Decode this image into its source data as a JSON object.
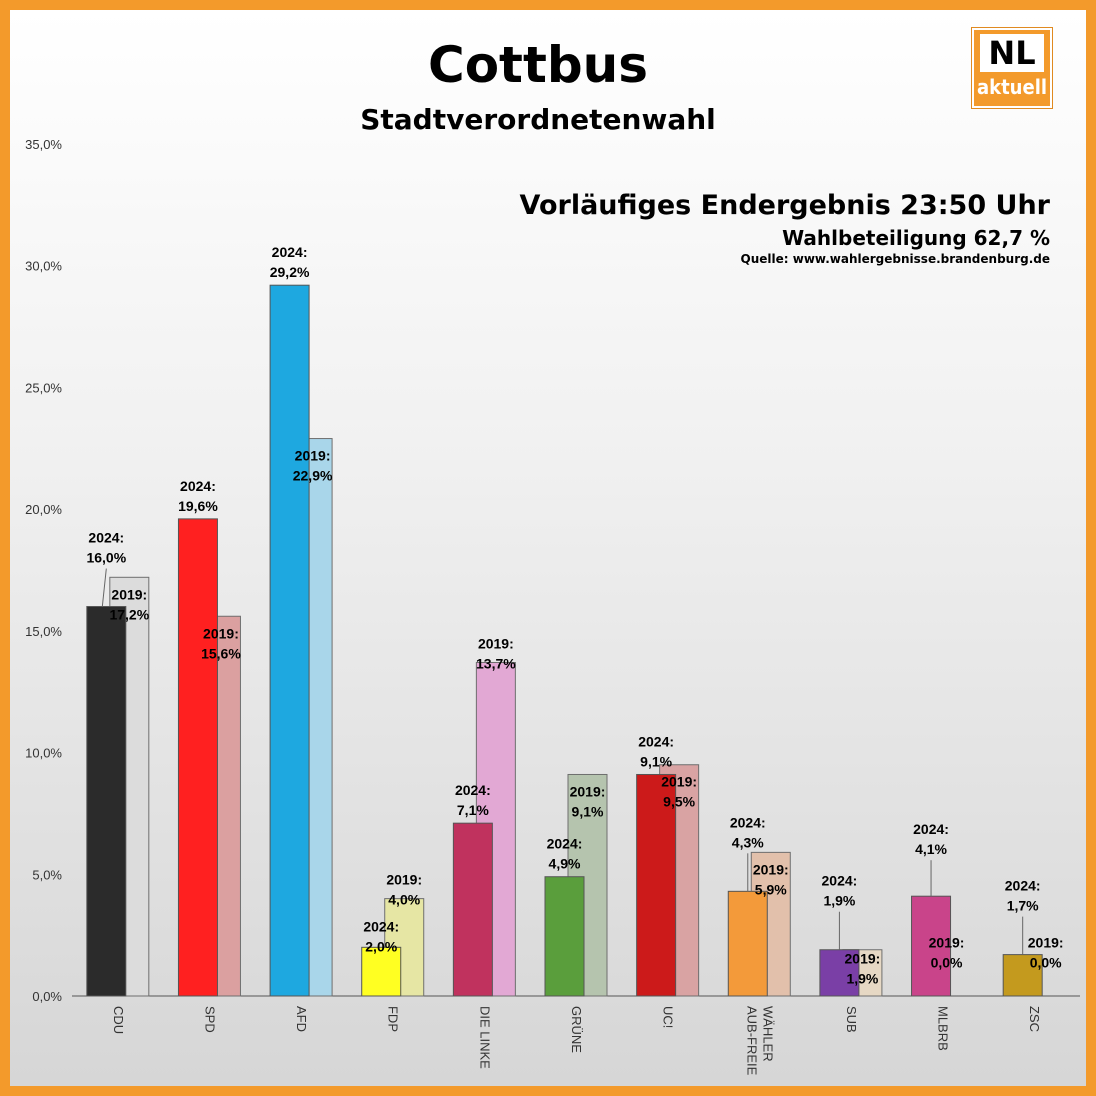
{
  "header": {
    "title": "Cottbus",
    "subtitle": "Stadtverordnetenwahl",
    "result_status": "Vorläufiges Endergebnis 23:50 Uhr",
    "turnout": "Wahlbeteiligung 62,7 %",
    "source": "Quelle: www.wahlergebnisse.brandenburg.de"
  },
  "logo": {
    "line1": "NL",
    "line2": "aktuell"
  },
  "colors": {
    "frame": "#f39a2b",
    "logo_bg": "#f39a2b"
  },
  "chart_data": {
    "type": "bar",
    "ylim": [
      0,
      35
    ],
    "yticks": [
      "0,0%",
      "5,0%",
      "10,0%",
      "15,0%",
      "20,0%",
      "25,0%",
      "30,0%",
      "35,0%"
    ],
    "grid": false,
    "categories": [
      "CDU",
      "SPD",
      "AFD",
      "FDP",
      "DIE LINKE",
      "GRÜNE",
      "UC!",
      "AUB-FREIE WÄHLER",
      "SUB",
      "MLBRB",
      "ZSC"
    ],
    "category_labels": [
      [
        "CDU"
      ],
      [
        "SPD"
      ],
      [
        "AFD"
      ],
      [
        "FDP"
      ],
      [
        "DIE LINKE"
      ],
      [
        "GRÜNE"
      ],
      [
        "UC!"
      ],
      [
        "AUB-FREIE",
        "WÄHLER"
      ],
      [
        "SUB"
      ],
      [
        "MLBRB"
      ],
      [
        "ZSC"
      ]
    ],
    "series": [
      {
        "label_prefix": "2024:",
        "values": [
          16.0,
          19.6,
          29.2,
          2.0,
          7.1,
          4.9,
          9.1,
          4.3,
          1.9,
          4.1,
          1.7
        ],
        "labels": [
          "16,0%",
          "19,6%",
          "29,2%",
          "2,0%",
          "7,1%",
          "4,9%",
          "9,1%",
          "4,3%",
          "1,9%",
          "4,1%",
          "1,7%"
        ],
        "colors": [
          "#2b2b2b",
          "#ff2020",
          "#1ea8e0",
          "#ffff22",
          "#c0325e",
          "#5a9e3c",
          "#cc1a1a",
          "#f39a3a",
          "#7a3fa6",
          "#c9448a",
          "#c49a1e"
        ]
      },
      {
        "label_prefix": "2019:",
        "values": [
          17.2,
          15.6,
          22.9,
          4.0,
          13.7,
          9.1,
          9.5,
          5.9,
          1.9,
          0.0,
          0.0
        ],
        "labels": [
          "17,2%",
          "15,6%",
          "22,9%",
          "4,0%",
          "13,7%",
          "9,1%",
          "9,5%",
          "5,9%",
          "1,9%",
          "0,0%",
          "0,0%"
        ],
        "colors": [
          "#dcdcdc",
          "#dba0a0",
          "#a9d6ea",
          "#e6e6a4",
          "#e2a8d4",
          "#b5c4ae",
          "#d9a3a3",
          "#e2c0ab",
          "#e6d8c4",
          "#e6b0cc",
          "#d8c8a0"
        ]
      }
    ]
  }
}
